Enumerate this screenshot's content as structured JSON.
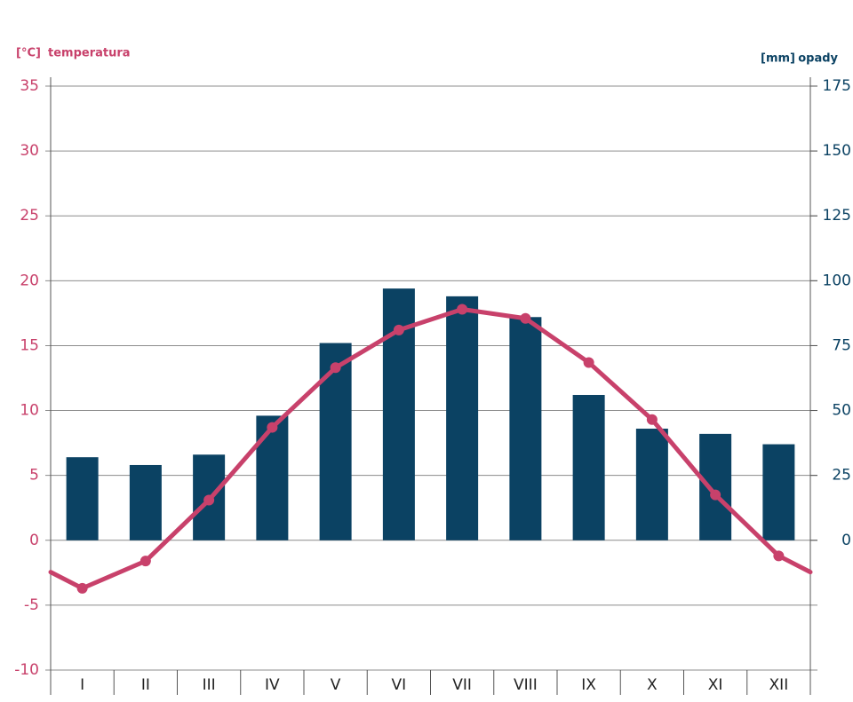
{
  "chart_data": {
    "type": "climate",
    "y_unit": "[°C]",
    "y_label": "temperatura",
    "y2_unit": "[mm]",
    "y2_label": "opady",
    "categories": [
      "I",
      "II",
      "III",
      "IV",
      "V",
      "VI",
      "VII",
      "VIII",
      "IX",
      "X",
      "XI",
      "XII"
    ],
    "series": [
      {
        "name": "opady",
        "type": "bar",
        "axis": "y2",
        "color": "#0b4263",
        "values": [
          32,
          29,
          33,
          48,
          76,
          97,
          94,
          86,
          56,
          43,
          41,
          37
        ]
      },
      {
        "name": "temperatura",
        "type": "line",
        "color": "#c8416b",
        "values": [
          -3.7,
          -1.6,
          3.1,
          8.7,
          13.3,
          16.2,
          17.8,
          17.1,
          13.7,
          9.3,
          3.5,
          -1.2
        ]
      }
    ],
    "ylim": [
      -10,
      35
    ],
    "yticks": [
      -10,
      -5,
      0,
      5,
      10,
      15,
      20,
      25,
      30,
      35
    ],
    "y2lim": [
      -50,
      175
    ],
    "y2ticks": [
      0,
      25,
      50,
      75,
      100,
      125,
      150,
      175
    ],
    "grid": true
  }
}
